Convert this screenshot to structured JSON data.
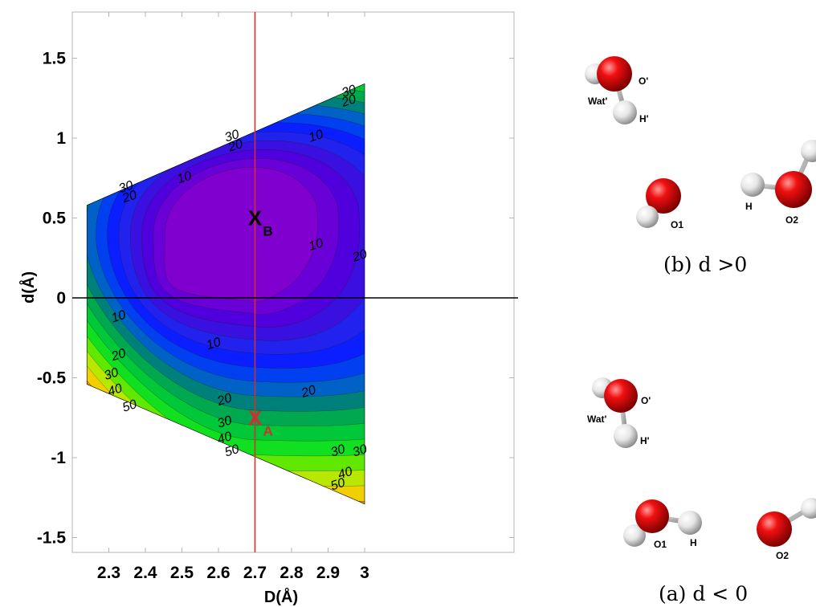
{
  "chart_data": {
    "type": "contour",
    "xlabel": "D(Å)",
    "ylabel": "d(Å)",
    "xlim": [
      2.24,
      3.08
    ],
    "ylim": [
      -1.6,
      1.8
    ],
    "xticks": [
      "2.3",
      "2.4",
      "2.5",
      "2.6",
      "2.7",
      "2.8",
      "2.9",
      "3"
    ],
    "yticks": [
      "1.5",
      "1",
      "0.5",
      "0",
      "-0.5",
      "-1",
      "-1.5"
    ],
    "xtick_values": [
      2.3,
      2.4,
      2.5,
      2.6,
      2.7,
      2.8,
      2.9,
      3.0
    ],
    "ytick_values": [
      1.5,
      1.0,
      0.5,
      0.0,
      -0.5,
      -1.0,
      -1.5
    ],
    "grid": false,
    "domain_corners": {
      "top_left": [
        2.24,
        0.58
      ],
      "top_right": [
        3.0,
        1.34
      ],
      "bottom_right": [
        3.0,
        -1.29
      ],
      "bottom_left": [
        2.24,
        -0.54
      ]
    },
    "minimum": {
      "x": 2.6,
      "y": 0.4
    },
    "reference_lines": [
      {
        "orientation": "vertical",
        "x": 2.7,
        "color": "#d03030"
      },
      {
        "orientation": "horizontal",
        "y": 0.0,
        "color": "#000000"
      }
    ],
    "contour_labels": [
      {
        "text": "30",
        "x": 2.35,
        "y": 0.67
      },
      {
        "text": "20",
        "x": 2.36,
        "y": 0.61
      },
      {
        "text": "30",
        "x": 2.64,
        "y": 0.99
      },
      {
        "text": "20",
        "x": 2.65,
        "y": 0.93
      },
      {
        "text": "10",
        "x": 2.51,
        "y": 0.73
      },
      {
        "text": "10",
        "x": 2.87,
        "y": 0.99
      },
      {
        "text": "30",
        "x": 2.96,
        "y": 1.27
      },
      {
        "text": "20",
        "x": 2.96,
        "y": 1.21
      },
      {
        "text": "10",
        "x": 2.87,
        "y": 0.31
      },
      {
        "text": "20",
        "x": 2.99,
        "y": 0.24
      },
      {
        "text": "10",
        "x": 2.33,
        "y": -0.14
      },
      {
        "text": "10",
        "x": 2.59,
        "y": -0.31
      },
      {
        "text": "20",
        "x": 2.33,
        "y": -0.38
      },
      {
        "text": "30",
        "x": 2.31,
        "y": -0.5
      },
      {
        "text": "40",
        "x": 2.32,
        "y": -0.6
      },
      {
        "text": "50",
        "x": 2.36,
        "y": -0.7
      },
      {
        "text": "20",
        "x": 2.62,
        "y": -0.66
      },
      {
        "text": "20",
        "x": 2.85,
        "y": -0.61
      },
      {
        "text": "30",
        "x": 2.62,
        "y": -0.8
      },
      {
        "text": "40",
        "x": 2.62,
        "y": -0.9
      },
      {
        "text": "50",
        "x": 2.64,
        "y": -0.98
      },
      {
        "text": "30",
        "x": 2.93,
        "y": -0.98
      },
      {
        "text": "30",
        "x": 2.99,
        "y": -0.98
      },
      {
        "text": "40",
        "x": 2.95,
        "y": -1.12
      },
      {
        "text": "50",
        "x": 2.93,
        "y": -1.19
      }
    ],
    "points": [
      {
        "label": "X",
        "sub": "B",
        "x": 2.7,
        "y": 0.5,
        "color": "#000000"
      },
      {
        "label": "X",
        "sub": "A",
        "x": 2.7,
        "y": -0.75,
        "color": "#d03030"
      }
    ],
    "colors": [
      "#8000d0",
      "#6a00d8",
      "#4f00dc",
      "#3a10e0",
      "#2222ee",
      "#0a1eff",
      "#0040f0",
      "#0062c6",
      "#00807a",
      "#00a850",
      "#00c838",
      "#10e020",
      "#60e800",
      "#b8e800",
      "#f0d000",
      "#f09000",
      "#e85000",
      "#d02000"
    ]
  },
  "panels": [
    {
      "caption": "(b) d >0",
      "atom_labels": [
        "O'",
        "Wat'",
        "H'",
        "H",
        "O1",
        "O2"
      ]
    },
    {
      "caption": "(a) d < 0",
      "atom_labels": [
        "O'",
        "Wat'",
        "H'",
        "O1",
        "H",
        "O2"
      ]
    }
  ]
}
